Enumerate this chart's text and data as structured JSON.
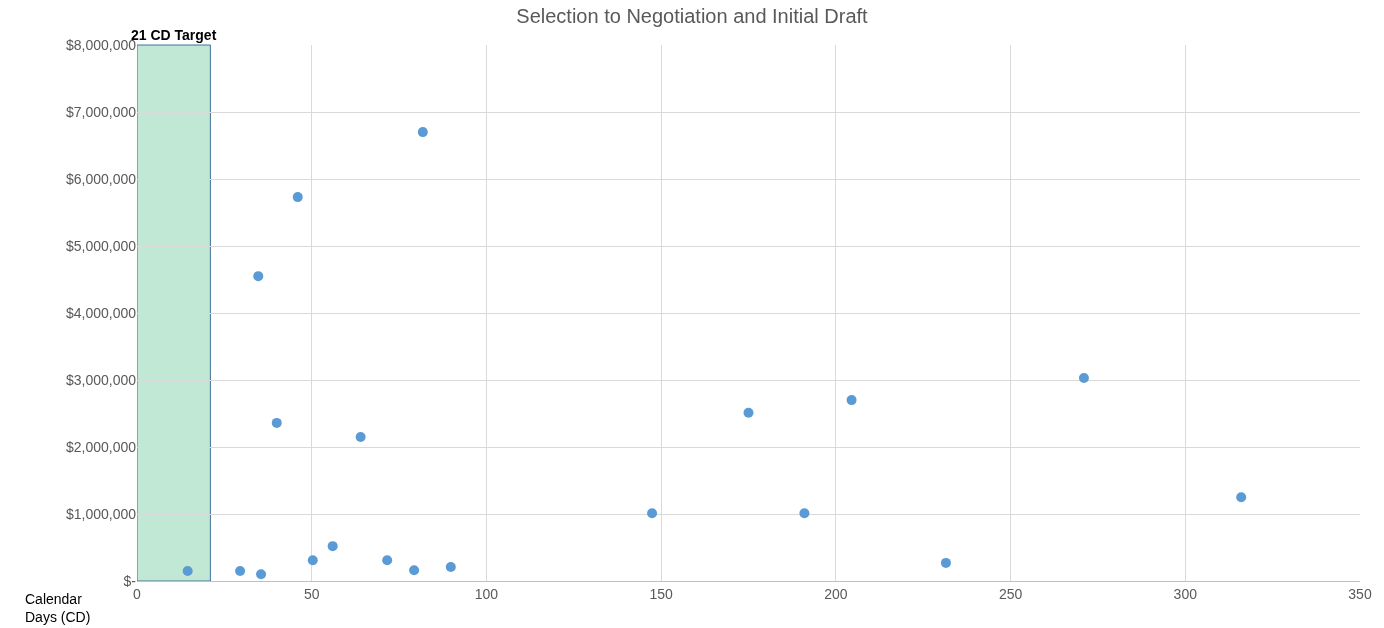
{
  "chart_data": {
    "type": "scatter",
    "title": "Selection to Negotiation and Initial Draft",
    "xlabel": "Calendar Days (CD)",
    "x": [
      14.5,
      29.5,
      35.5,
      34.7,
      46,
      40,
      50.3,
      56,
      64,
      81.8,
      71.6,
      79.3,
      89.8,
      147.4,
      175,
      191,
      204.5,
      231.5,
      271,
      316
    ],
    "series": [
      {
        "color": "#5b9bd5",
        "values": [
          150000,
          150000,
          100000,
          4550000,
          5730000,
          2360000,
          310000,
          520000,
          2150000,
          6700000,
          310000,
          160000,
          210000,
          1010000,
          2510000,
          1010000,
          2700000,
          270000,
          3030000,
          1250000
        ]
      }
    ],
    "xlim": [
      0,
      350
    ],
    "xticks": [
      0,
      50,
      100,
      150,
      200,
      250,
      300,
      350
    ],
    "ylim": [
      0,
      8000000
    ],
    "yticks": [
      {
        "value": 0,
        "label": "$-"
      },
      {
        "value": 1000000,
        "label": "$1,000,000"
      },
      {
        "value": 2000000,
        "label": "$2,000,000"
      },
      {
        "value": 3000000,
        "label": "$3,000,000"
      },
      {
        "value": 4000000,
        "label": "$4,000,000"
      },
      {
        "value": 5000000,
        "label": "$5,000,000"
      },
      {
        "value": 6000000,
        "label": "$6,000,000"
      },
      {
        "value": 7000000,
        "label": "$7,000,000"
      },
      {
        "value": 8000000,
        "label": "$8,000,000"
      }
    ],
    "bands": [
      {
        "axis": "x",
        "from": 0,
        "to": 21,
        "label": "21 CD Target",
        "color": "#c0e8d4"
      }
    ],
    "grid": true,
    "marker": "circle"
  }
}
